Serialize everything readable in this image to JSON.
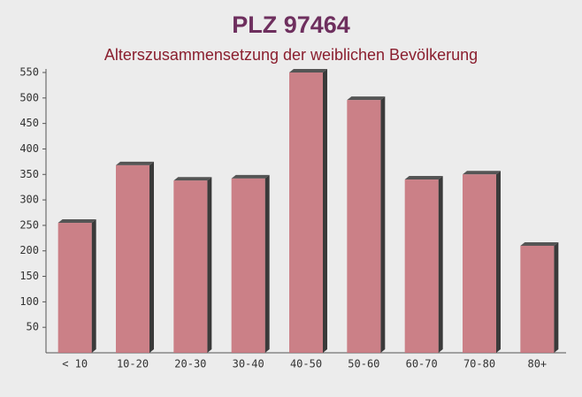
{
  "chart_data": {
    "type": "bar",
    "title": "PLZ 97464",
    "subtitle": "Alterszusammensetzung der weiblichen Bevölkerung",
    "categories": [
      "< 10",
      "10-20",
      "20-30",
      "30-40",
      "40-50",
      "50-60",
      "60-70",
      "70-80",
      "80+"
    ],
    "values": [
      255,
      368,
      338,
      342,
      550,
      496,
      340,
      350,
      210
    ],
    "color": "#c8747c",
    "ylim": [
      0,
      550
    ],
    "yticks": [
      50,
      100,
      150,
      200,
      250,
      300,
      350,
      400,
      450,
      500,
      550
    ],
    "grid": false
  }
}
